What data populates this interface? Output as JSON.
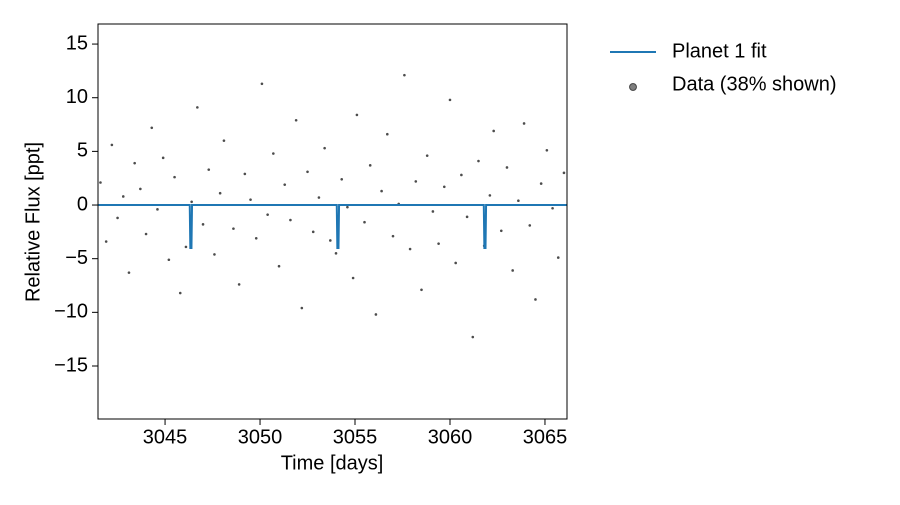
{
  "chart_data": {
    "type": "scatter",
    "xlabel": "Time [days]",
    "ylabel": "Relative Flux [ppt]",
    "xlim": [
      3041.47,
      3066.16
    ],
    "ylim": [
      -19.94,
      16.87
    ],
    "xticks": [
      3045,
      3050,
      3055,
      3060,
      3065
    ],
    "yticks": [
      {
        "value": -15,
        "label": "−15"
      },
      {
        "value": -10,
        "label": "−10"
      },
      {
        "value": -5,
        "label": "−5"
      },
      0,
      5,
      10,
      15
    ],
    "legend": "outside-right",
    "series": [
      {
        "name": "Planet 1 fit",
        "type": "line",
        "color": "#1f77b4",
        "x": [
          3041.47,
          3046.3,
          3046.33,
          3046.39,
          3046.42,
          3054.04,
          3054.07,
          3054.13,
          3054.16,
          3061.78,
          3061.81,
          3061.87,
          3061.9,
          3066.16
        ],
        "values": [
          0,
          0,
          -4,
          -4,
          0,
          0,
          -4,
          -4,
          0,
          0,
          -4,
          -4,
          0,
          0
        ]
      },
      {
        "name": "Data (38% shown)",
        "type": "scatter",
        "color": "#000000",
        "x": [
          3041.6,
          3041.9,
          3042.2,
          3042.5,
          3042.8,
          3043.1,
          3043.4,
          3043.7,
          3044.0,
          3044.3,
          3044.6,
          3044.9,
          3045.2,
          3045.5,
          3045.8,
          3046.1,
          3046.4,
          3046.7,
          3047.0,
          3047.3,
          3047.6,
          3047.9,
          3048.1,
          3048.6,
          3048.9,
          3049.2,
          3049.5,
          3049.8,
          3050.1,
          3050.4,
          3050.7,
          3051.0,
          3051.3,
          3051.6,
          3051.9,
          3052.2,
          3052.5,
          3052.8,
          3053.1,
          3053.4,
          3053.7,
          3054.0,
          3054.3,
          3054.6,
          3054.9,
          3055.1,
          3055.5,
          3055.8,
          3056.1,
          3056.4,
          3056.7,
          3057.0,
          3057.3,
          3057.6,
          3057.9,
          3058.2,
          3058.5,
          3058.8,
          3059.1,
          3059.4,
          3059.7,
          3060.0,
          3060.3,
          3060.6,
          3060.9,
          3061.2,
          3061.5,
          3061.8,
          3062.1,
          3062.3,
          3062.7,
          3063.0,
          3063.3,
          3063.6,
          3063.9,
          3064.2,
          3064.5,
          3064.8,
          3065.1,
          3065.4,
          3065.7,
          3066.0
        ],
        "values": [
          2.1,
          -3.4,
          5.6,
          -1.2,
          0.8,
          -6.3,
          3.9,
          1.5,
          -2.7,
          7.2,
          -0.4,
          4.4,
          -5.1,
          2.6,
          -8.2,
          -3.9,
          0.3,
          9.1,
          -1.8,
          3.3,
          -4.6,
          1.1,
          6.0,
          -2.2,
          -7.4,
          2.9,
          0.5,
          -3.1,
          11.3,
          -0.9,
          4.8,
          -5.7,
          1.9,
          -1.4,
          7.9,
          -9.6,
          3.1,
          -2.5,
          0.7,
          5.3,
          -3.3,
          -4.5,
          2.4,
          -0.2,
          -6.8,
          8.4,
          -1.6,
          3.7,
          -10.2,
          1.3,
          6.6,
          -2.9,
          0.1,
          12.1,
          -4.1,
          2.2,
          -7.9,
          4.6,
          -0.6,
          -3.6,
          1.7,
          9.8,
          -5.4,
          2.8,
          -1.1,
          -12.3,
          4.1,
          -3.8,
          0.9,
          6.9,
          -2.4,
          3.5,
          -6.1,
          0.4,
          7.6,
          -1.9,
          -8.8,
          2.0,
          5.1,
          -0.3,
          -4.9,
          3.0
        ]
      }
    ]
  }
}
